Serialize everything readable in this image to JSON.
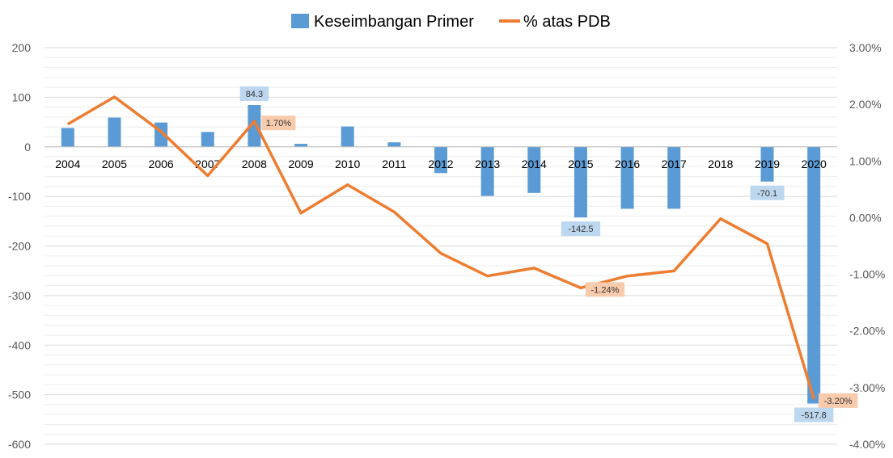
{
  "chart_data": {
    "type": "bar+line",
    "categories": [
      "2004",
      "2005",
      "2006",
      "2007",
      "2008",
      "2009",
      "2010",
      "2011",
      "2012",
      "2013",
      "2014",
      "2015",
      "2016",
      "2017",
      "2018",
      "2019",
      "2020"
    ],
    "series": [
      {
        "name": "Keseimbangan Primer",
        "type": "bar",
        "axis": "left",
        "color": "#5B9BD5",
        "values": [
          38,
          59,
          49,
          30,
          84.3,
          6,
          41,
          9,
          -53,
          -99,
          -93,
          -142.5,
          -125,
          -125,
          0,
          -70.1,
          -517.8
        ]
      },
      {
        "name": "% atas PDB",
        "type": "line",
        "axis": "right",
        "color": "#ED7D31",
        "values": [
          1.65,
          2.13,
          1.52,
          0.74,
          1.7,
          0.08,
          0.58,
          0.1,
          -0.63,
          -1.03,
          -0.89,
          -1.24,
          -1.03,
          -0.94,
          -0.02,
          -0.46,
          -3.2
        ]
      }
    ],
    "left_axis": {
      "min": -600,
      "max": 200,
      "ticks": [
        "200",
        "100",
        "0",
        "-100",
        "-200",
        "-300",
        "-400",
        "-500",
        "-600"
      ]
    },
    "right_axis": {
      "min": -4,
      "max": 3,
      "ticks": [
        "3.00%",
        "2.00%",
        "1.00%",
        "0.00%",
        "-1.00%",
        "-2.00%",
        "-3.00%",
        "-4.00%"
      ]
    },
    "bar_labels": [
      {
        "index": 4,
        "text": "84.3"
      },
      {
        "index": 11,
        "text": "-142.5"
      },
      {
        "index": 15,
        "text": "-70.1"
      },
      {
        "index": 16,
        "text": "-517.8"
      }
    ],
    "line_labels": [
      {
        "index": 4,
        "text": "1.70%"
      },
      {
        "index": 11,
        "text": "-1.24%"
      },
      {
        "index": 16,
        "text": "-3.20%"
      }
    ],
    "legend_position": "top",
    "grid": true,
    "colors": {
      "bar_label_bg": "#BDD7EE",
      "line_label_bg": "#F8CBAD",
      "grid": "#D9D9D9"
    }
  }
}
